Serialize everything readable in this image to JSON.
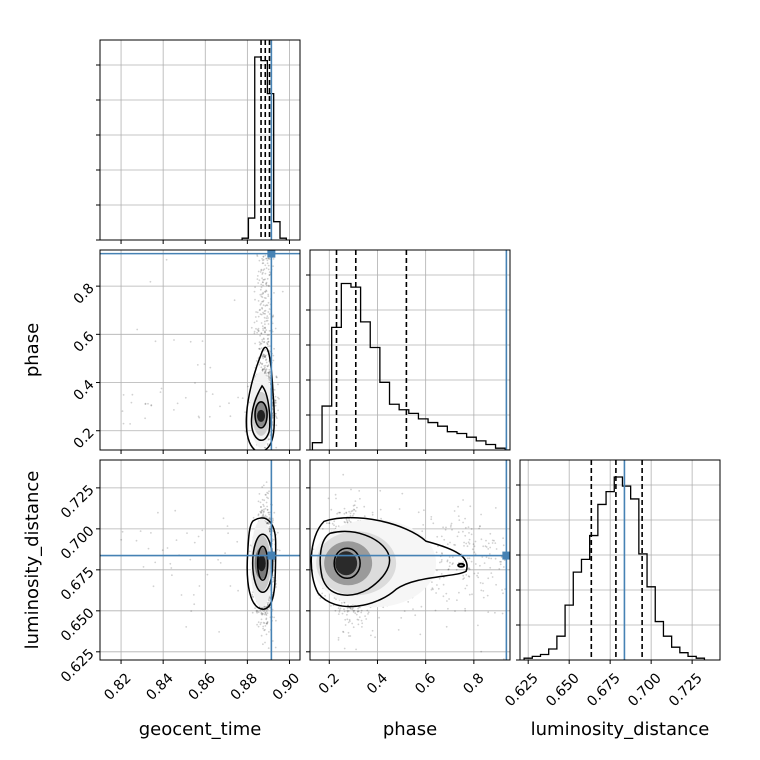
{
  "chart_data": {
    "type": "corner",
    "parameters": [
      "geocent_time",
      "phase",
      "luminosity_distance"
    ],
    "axis_labels": {
      "geocent_time": "geocent_time",
      "phase": "phase",
      "luminosity_distance": "luminosity_distance"
    },
    "ranges": {
      "geocent_time": [
        0.81,
        0.905
      ],
      "phase": [
        0.12,
        0.95
      ],
      "luminosity_distance": [
        0.62,
        0.742
      ]
    },
    "ticks": {
      "geocent_time": [
        "0.82",
        "0.84",
        "0.86",
        "0.88",
        "0.90"
      ],
      "phase": [
        "0.2",
        "0.4",
        "0.6",
        "0.8"
      ],
      "luminosity_distance": [
        "0.625",
        "0.650",
        "0.675",
        "0.700",
        "0.725"
      ]
    },
    "truths": {
      "geocent_time": 0.8914,
      "phase": 0.935,
      "luminosity_distance": 0.6837
    },
    "quantiles": {
      "geocent_time": [
        0.8865,
        0.8885,
        0.8905
      ],
      "phase": [
        0.23,
        0.31,
        0.52
      ],
      "luminosity_distance": [
        0.6635,
        0.6785,
        0.6945
      ]
    },
    "histograms": [
      {
        "parameter": "geocent_time",
        "bin_edges": [
          0.8775,
          0.8805,
          0.8835,
          0.8865,
          0.8895,
          0.8925,
          0.8955,
          0.8985
        ],
        "counts": [
          0.01,
          0.12,
          1.0,
          0.98,
          0.8,
          0.1,
          0.01
        ]
      },
      {
        "parameter": "phase",
        "bin_edges": [
          0.13,
          0.17,
          0.21,
          0.25,
          0.29,
          0.33,
          0.37,
          0.41,
          0.45,
          0.49,
          0.53,
          0.57,
          0.61,
          0.65,
          0.69,
          0.73,
          0.77,
          0.81,
          0.85,
          0.89,
          0.93,
          0.95
        ],
        "counts": [
          0.04,
          0.24,
          0.67,
          0.91,
          0.89,
          0.7,
          0.56,
          0.37,
          0.25,
          0.22,
          0.2,
          0.17,
          0.15,
          0.13,
          0.1,
          0.09,
          0.07,
          0.05,
          0.03,
          0.01,
          0.0
        ]
      },
      {
        "parameter": "luminosity_distance",
        "bin_edges": [
          0.6225,
          0.6275,
          0.6325,
          0.6375,
          0.6425,
          0.6475,
          0.6525,
          0.6575,
          0.6625,
          0.6675,
          0.6725,
          0.6775,
          0.6825,
          0.6875,
          0.6925,
          0.6975,
          0.7025,
          0.7075,
          0.7125,
          0.7175,
          0.7225,
          0.7275,
          0.7325
        ],
        "counts": [
          0.01,
          0.02,
          0.03,
          0.06,
          0.13,
          0.3,
          0.48,
          0.55,
          0.68,
          0.85,
          0.92,
          1.0,
          0.95,
          0.88,
          0.58,
          0.4,
          0.21,
          0.13,
          0.07,
          0.04,
          0.02,
          0.01
        ]
      }
    ],
    "density_peaks": [
      {
        "x": "geocent_time",
        "y": "phase",
        "center": [
          0.8865,
          0.27
        ]
      },
      {
        "x": "geocent_time",
        "y": "luminosity_distance",
        "center": [
          0.8868,
          0.679
        ]
      },
      {
        "x": "phase",
        "y": "luminosity_distance",
        "center": [
          0.27,
          0.679
        ]
      }
    ],
    "truth_color": "#4682b4",
    "quantile_line_style": "dashed",
    "grid": true,
    "legend": "none"
  }
}
